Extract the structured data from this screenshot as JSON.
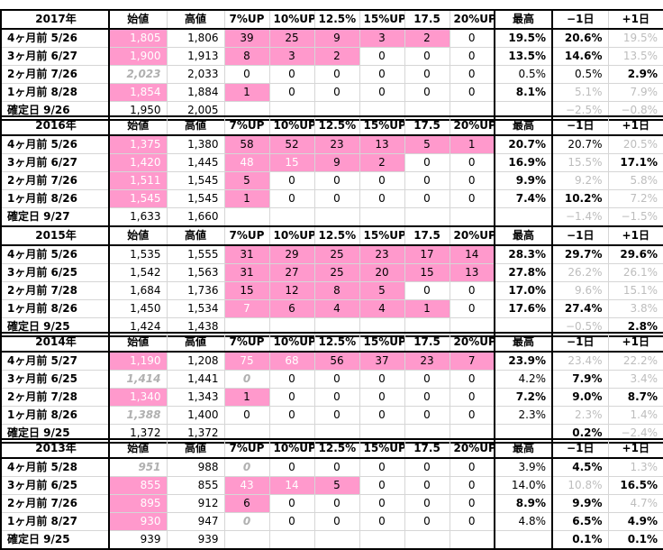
{
  "headers": [
    "始値",
    "高値",
    "7%UP",
    "10%UP",
    "12.5%",
    "15%UP",
    "17.5",
    "20%UP",
    "最高",
    "−1日",
    "+1日"
  ],
  "sections": [
    {
      "year": "2017年",
      "rows": [
        {
          "label": "4ヶ月前 5/26",
          "open": "1,805",
          "high": "1,806",
          "c7": "39",
          "c10": "25",
          "c125": "9",
          "c15": "3",
          "c175": "2",
          "c20": "0",
          "max": "19.5%",
          "m1": "20.6%",
          "p1": "19.5%"
        },
        {
          "label": "3ヶ月前 6/27",
          "open": "1,900",
          "high": "1,913",
          "c7": "8",
          "c10": "3",
          "c125": "2",
          "c15": "0",
          "c175": "0",
          "c20": "0",
          "max": "13.5%",
          "m1": "14.6%",
          "p1": "13.5%"
        },
        {
          "label": "2ヶ月前 7/26",
          "open": "2,023",
          "high": "2,033",
          "c7": "0",
          "c10": "0",
          "c125": "0",
          "c15": "0",
          "c175": "0",
          "c20": "0",
          "max": "0.5%",
          "m1": "0.5%",
          "p1": "2.9%"
        },
        {
          "label": "1ヶ月前 8/28",
          "open": "1,854",
          "high": "1,884",
          "c7": "1",
          "c10": "0",
          "c125": "0",
          "c15": "0",
          "c175": "0",
          "c20": "0",
          "max": "8.1%",
          "m1": "5.1%",
          "p1": "7.9%"
        },
        {
          "label": "確定日 9/26",
          "open": "1,950",
          "high": "2,005",
          "c7": "",
          "c10": "",
          "c125": "",
          "c15": "",
          "c175": "",
          "c20": "",
          "max": "",
          "m1": "−2.5%",
          "p1": "−0.8%"
        }
      ]
    },
    {
      "year": "2016年",
      "rows": [
        {
          "label": "4ヶ月前 5/26",
          "open": "1,375",
          "high": "1,380",
          "c7": "58",
          "c10": "52",
          "c125": "23",
          "c15": "13",
          "c175": "5",
          "c20": "1",
          "max": "20.7%",
          "m1": "20.7%",
          "p1": "20.5%"
        },
        {
          "label": "3ヶ月前 6/27",
          "open": "1,420",
          "high": "1,445",
          "c7": "48",
          "c10": "15",
          "c125": "9",
          "c15": "2",
          "c175": "0",
          "c20": "0",
          "max": "16.9%",
          "m1": "15.5%",
          "p1": "17.1%"
        },
        {
          "label": "2ヶ月前 7/26",
          "open": "1,511",
          "high": "1,545",
          "c7": "5",
          "c10": "0",
          "c125": "0",
          "c15": "0",
          "c175": "0",
          "c20": "0",
          "max": "9.9%",
          "m1": "9.2%",
          "p1": "5.8%"
        },
        {
          "label": "1ヶ月前 8/26",
          "open": "1,545",
          "high": "1,545",
          "c7": "1",
          "c10": "0",
          "c125": "0",
          "c15": "0",
          "c175": "0",
          "c20": "0",
          "max": "7.4%",
          "m1": "10.2%",
          "p1": "7.2%"
        },
        {
          "label": "確定日 9/27",
          "open": "1,633",
          "high": "1,660",
          "c7": "",
          "c10": "",
          "c125": "",
          "c15": "",
          "c175": "",
          "c20": "",
          "max": "",
          "m1": "−1.4%",
          "p1": "−1.5%"
        }
      ]
    },
    {
      "year": "2015年",
      "rows": [
        {
          "label": "4ヶ月前 5/26",
          "open": "1,535",
          "high": "1,555",
          "c7": "31",
          "c10": "29",
          "c125": "25",
          "c15": "23",
          "c175": "17",
          "c20": "14",
          "max": "28.3%",
          "m1": "29.7%",
          "p1": "29.6%"
        },
        {
          "label": "3ヶ月前 6/25",
          "open": "1,542",
          "high": "1,563",
          "c7": "31",
          "c10": "27",
          "c125": "25",
          "c15": "20",
          "c175": "15",
          "c20": "13",
          "max": "27.8%",
          "m1": "26.2%",
          "p1": "26.1%"
        },
        {
          "label": "2ヶ月前 7/28",
          "open": "1,684",
          "high": "1,736",
          "c7": "15",
          "c10": "12",
          "c125": "8",
          "c15": "5",
          "c175": "0",
          "c20": "0",
          "max": "17.0%",
          "m1": "9.6%",
          "p1": "15.1%"
        },
        {
          "label": "1ヶ月前 8/26",
          "open": "1,450",
          "high": "1,534",
          "c7": "7",
          "c10": "6",
          "c125": "4",
          "c15": "4",
          "c175": "1",
          "c20": "0",
          "max": "17.6%",
          "m1": "27.4%",
          "p1": "3.8%"
        },
        {
          "label": "確定日 9/25",
          "open": "1,424",
          "high": "1,438",
          "c7": "",
          "c10": "",
          "c125": "",
          "c15": "",
          "c175": "",
          "c20": "",
          "max": "",
          "m1": "−0.5%",
          "p1": "2.8%"
        }
      ]
    },
    {
      "year": "2014年",
      "rows": [
        {
          "label": "4ヶ月前 5/27",
          "open": "1,190",
          "high": "1,208",
          "c7": "75",
          "c10": "68",
          "c125": "56",
          "c15": "37",
          "c175": "23",
          "c20": "7",
          "max": "23.9%",
          "m1": "23.4%",
          "p1": "22.2%"
        },
        {
          "label": "3ヶ月前 6/25",
          "open": "1,414",
          "high": "1,441",
          "c7": "0",
          "c10": "0",
          "c125": "0",
          "c15": "0",
          "c175": "0",
          "c20": "0",
          "max": "4.2%",
          "m1": "7.9%",
          "p1": "3.4%"
        },
        {
          "label": "2ヶ月前 7/28",
          "open": "1,340",
          "high": "1,343",
          "c7": "1",
          "c10": "0",
          "c125": "0",
          "c15": "0",
          "c175": "0",
          "c20": "0",
          "max": "7.2%",
          "m1": "9.0%",
          "p1": "8.7%"
        },
        {
          "label": "1ヶ月前 8/26",
          "open": "1,388",
          "high": "1,400",
          "c7": "0",
          "c10": "0",
          "c125": "0",
          "c15": "0",
          "c175": "0",
          "c20": "0",
          "max": "2.3%",
          "m1": "2.3%",
          "p1": "1.4%"
        },
        {
          "label": "確定日 9/25",
          "open": "1,372",
          "high": "1,372",
          "c7": "",
          "c10": "",
          "c125": "",
          "c15": "",
          "c175": "",
          "c20": "",
          "max": "",
          "m1": "0.2%",
          "p1": "−2.4%"
        }
      ]
    },
    {
      "year": "2013年",
      "rows": [
        {
          "label": "4ヶ月前 5/28",
          "open": "951",
          "high": "988",
          "c7": "0",
          "c10": "0",
          "c125": "0",
          "c15": "0",
          "c175": "0",
          "c20": "0",
          "max": "3.9%",
          "m1": "4.5%",
          "p1": "1.3%"
        },
        {
          "label": "3ヶ月前 6/25",
          "open": "855",
          "high": "855",
          "c7": "43",
          "c10": "14",
          "c125": "5",
          "c15": "0",
          "c175": "0",
          "c20": "0",
          "max": "14.0%",
          "m1": "10.8%",
          "p1": "16.5%"
        },
        {
          "label": "2ヶ月前 7/26",
          "open": "895",
          "high": "912",
          "c7": "6",
          "c10": "0",
          "c125": "0",
          "c15": "0",
          "c175": "0",
          "c20": "0",
          "max": "8.9%",
          "m1": "9.9%",
          "p1": "4.7%"
        },
        {
          "label": "1ヶ月前 8/27",
          "open": "930",
          "high": "947",
          "c7": "0",
          "c10": "0",
          "c125": "0",
          "c15": "0",
          "c175": "0",
          "c20": "0",
          "max": "4.8%",
          "m1": "6.5%",
          "p1": "4.9%"
        },
        {
          "label": "確定日 9/25",
          "open": "939",
          "high": "939",
          "c7": "",
          "c10": "",
          "c125": "",
          "c15": "",
          "c175": "",
          "c20": "",
          "max": "",
          "m1": "0.1%",
          "p1": "0.1%"
        }
      ]
    }
  ]
}
